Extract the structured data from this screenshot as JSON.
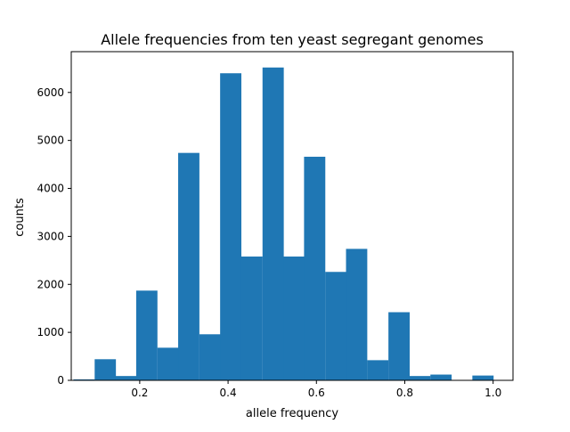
{
  "chart_data": {
    "type": "bar",
    "title": "Allele frequencies from ten yeast segregant genomes",
    "xlabel": "allele frequency",
    "ylabel": "counts",
    "xlim": [
      0.045,
      1.045
    ],
    "ylim": [
      0,
      6850
    ],
    "grid": false,
    "bar_color": "#1f77b4",
    "bin_width": 0.0475,
    "bins": [
      {
        "x0": 0.05,
        "value": 20
      },
      {
        "x0": 0.098,
        "value": 440
      },
      {
        "x0": 0.145,
        "value": 90
      },
      {
        "x0": 0.192,
        "value": 1870
      },
      {
        "x0": 0.24,
        "value": 680
      },
      {
        "x0": 0.287,
        "value": 4740
      },
      {
        "x0": 0.335,
        "value": 960
      },
      {
        "x0": 0.382,
        "value": 6400
      },
      {
        "x0": 0.43,
        "value": 2580
      },
      {
        "x0": 0.478,
        "value": 6520
      },
      {
        "x0": 0.525,
        "value": 2580
      },
      {
        "x0": 0.572,
        "value": 4660
      },
      {
        "x0": 0.62,
        "value": 2260
      },
      {
        "x0": 0.667,
        "value": 2740
      },
      {
        "x0": 0.715,
        "value": 420
      },
      {
        "x0": 0.763,
        "value": 1420
      },
      {
        "x0": 0.81,
        "value": 90
      },
      {
        "x0": 0.858,
        "value": 120
      },
      {
        "x0": 0.905,
        "value": 0
      },
      {
        "x0": 0.953,
        "value": 100
      }
    ],
    "x_ticks": [
      {
        "value": 0.2,
        "label": "0.2"
      },
      {
        "value": 0.4,
        "label": "0.4"
      },
      {
        "value": 0.6,
        "label": "0.6"
      },
      {
        "value": 0.8,
        "label": "0.8"
      },
      {
        "value": 1.0,
        "label": "1.0"
      }
    ],
    "y_ticks": [
      {
        "value": 0,
        "label": "0"
      },
      {
        "value": 1000,
        "label": "1000"
      },
      {
        "value": 2000,
        "label": "2000"
      },
      {
        "value": 3000,
        "label": "3000"
      },
      {
        "value": 4000,
        "label": "4000"
      },
      {
        "value": 5000,
        "label": "5000"
      },
      {
        "value": 6000,
        "label": "6000"
      }
    ]
  }
}
